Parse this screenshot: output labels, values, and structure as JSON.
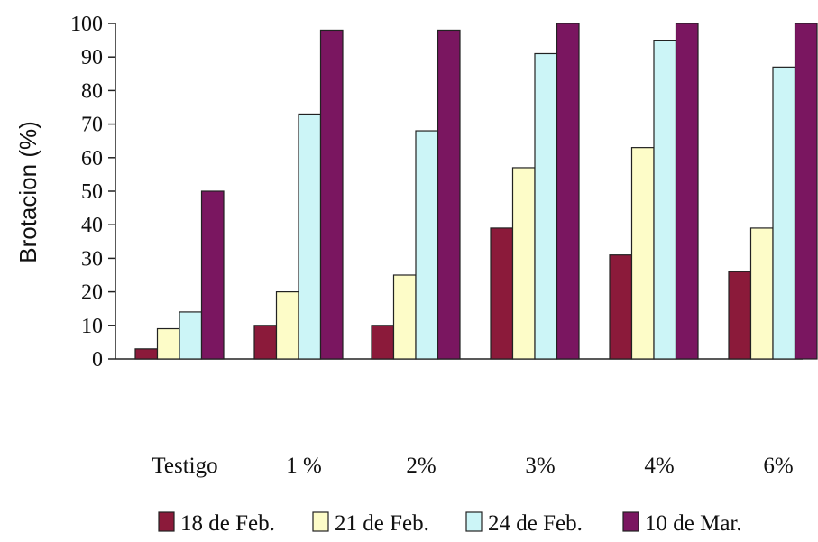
{
  "chart_data": {
    "type": "bar",
    "title": "",
    "xlabel": "",
    "ylabel": "Brotacion (%)",
    "ylim": [
      0,
      100
    ],
    "yticks": [
      0,
      10,
      20,
      30,
      40,
      50,
      60,
      70,
      80,
      90,
      100
    ],
    "grid": false,
    "legend_position": "bottom",
    "categories": [
      "Testigo",
      "1 %",
      "2%",
      "3%",
      "4%",
      "6%"
    ],
    "series": [
      {
        "name": "18 de Feb.",
        "color": "#8b1a3a",
        "values": [
          3,
          10,
          10,
          39,
          31,
          26
        ]
      },
      {
        "name": "21 de Feb.",
        "color": "#fdfcc8",
        "values": [
          9,
          20,
          25,
          57,
          63,
          39
        ]
      },
      {
        "name": "24 de Feb.",
        "color": "#ccf5f7",
        "values": [
          14,
          73,
          68,
          91,
          95,
          87
        ]
      },
      {
        "name": "10 de Mar.",
        "color": "#7a1660",
        "values": [
          50,
          98,
          98,
          100,
          100,
          100
        ]
      }
    ]
  }
}
